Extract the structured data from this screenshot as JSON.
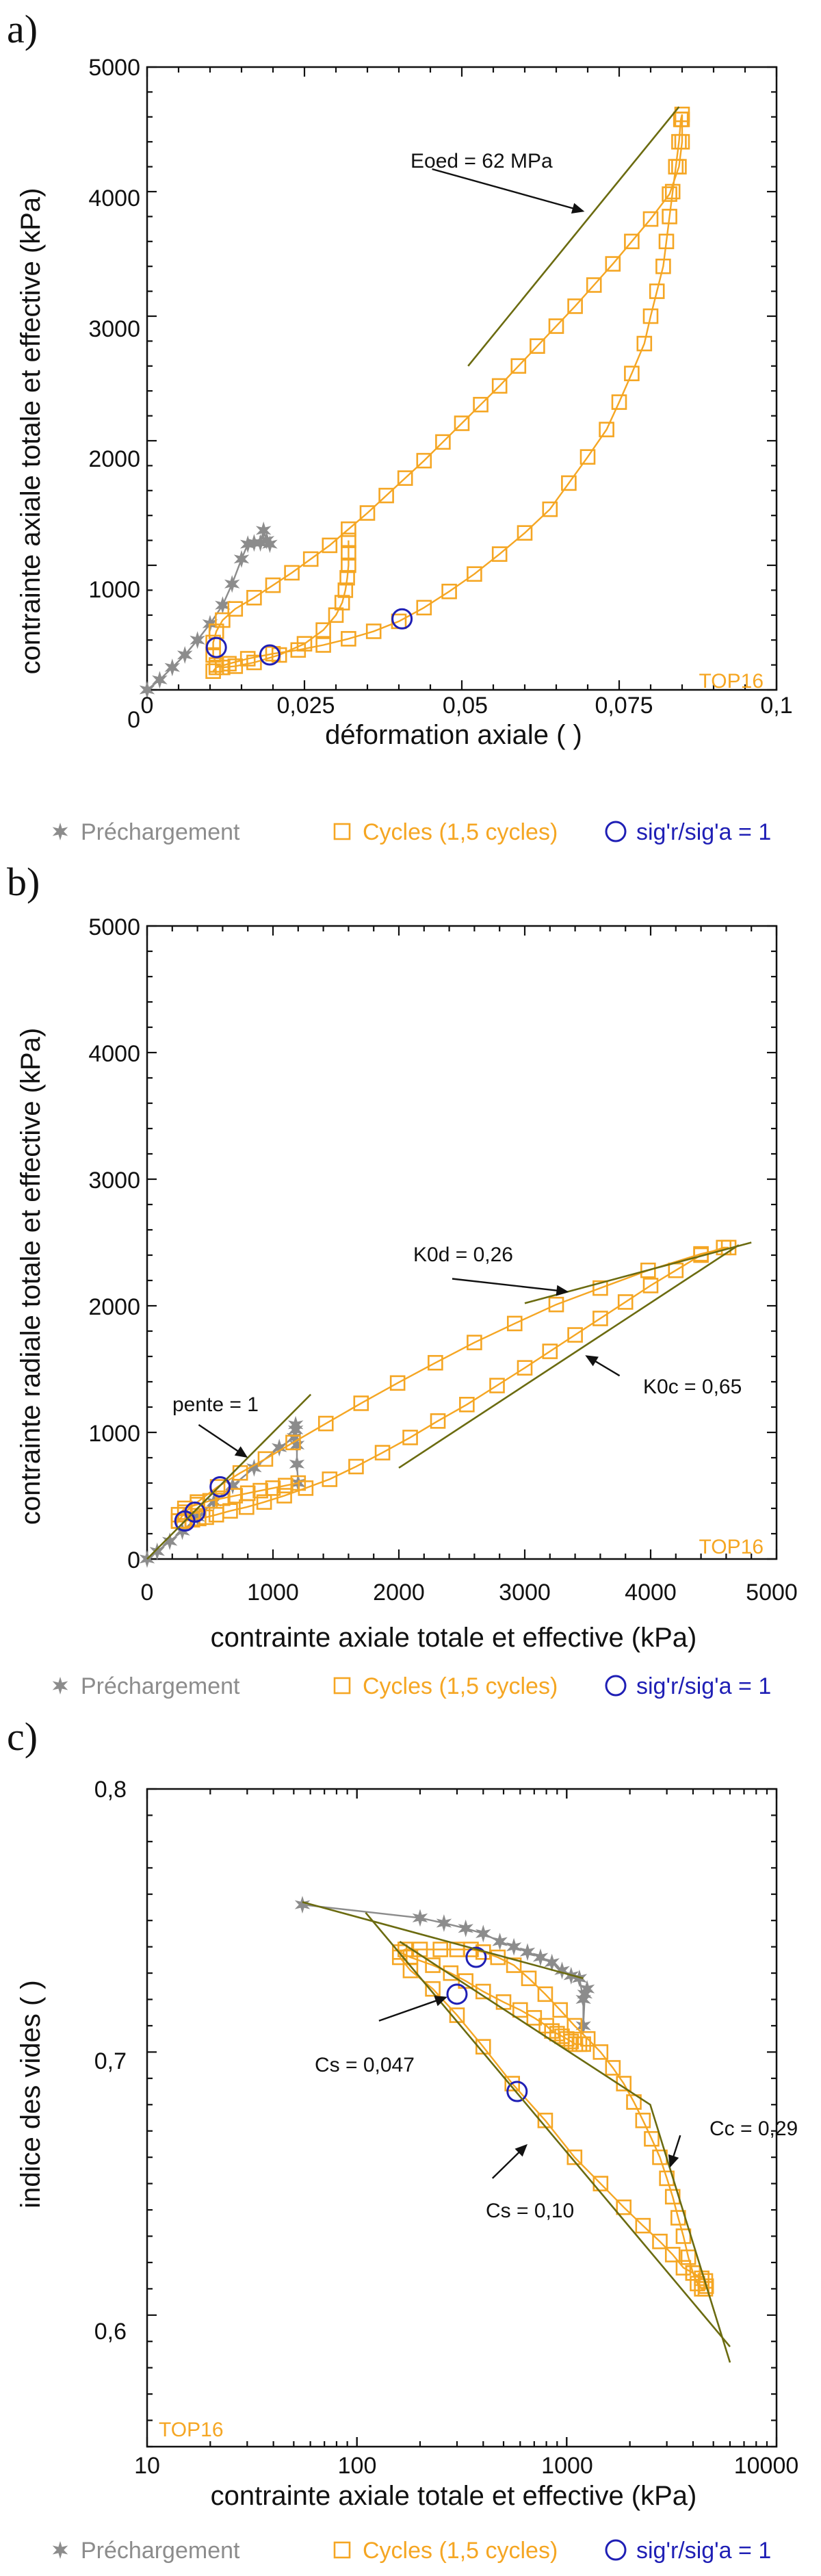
{
  "colors": {
    "prechargement": "#8c8c8c",
    "cycles": "#f5a623",
    "ratio": "#1f1fb5",
    "fit": "#6b6b10",
    "axis": "#111111"
  },
  "legend": {
    "prechargement": "Préchargement",
    "cycles": "Cycles  (1,5 cycles)",
    "ratio": "sig'r/sig'a = 1"
  },
  "chart_data": [
    {
      "panel_label": "a)",
      "type": "scatter",
      "tag": "TOP16",
      "xlabel": "déformation axiale ( )",
      "ylabel": "contrainte axiale totale et effective (kPa)",
      "xlim": [
        0,
        0.1
      ],
      "ylim": [
        0,
        5000
      ],
      "xticks": [
        "0",
        "0,025",
        "0,05",
        "0,075",
        "0,1"
      ],
      "yticks": [
        "0",
        "1000",
        "2000",
        "3000",
        "4000",
        "5000"
      ],
      "series": [
        {
          "name": "Préchargement",
          "marker": "star",
          "x": [
            0.0,
            0.002,
            0.004,
            0.006,
            0.008,
            0.01,
            0.012,
            0.0135,
            0.015,
            0.016,
            0.017,
            0.018,
            0.0185,
            0.019,
            0.0195
          ],
          "y": [
            0,
            80,
            180,
            280,
            400,
            530,
            680,
            850,
            1050,
            1170,
            1180,
            1180,
            1280,
            1200,
            1170
          ]
        },
        {
          "name": "Cycles  (1,5 cycles)",
          "marker": "square",
          "x": [
            0.032,
            0.032,
            0.032,
            0.0318,
            0.0315,
            0.031,
            0.03,
            0.028,
            0.025,
            0.021,
            0.017,
            0.014,
            0.012,
            0.011,
            0.0105,
            0.0105,
            0.011,
            0.012,
            0.014,
            0.017,
            0.02,
            0.023,
            0.026,
            0.029,
            0.032,
            0.035,
            0.038,
            0.041,
            0.044,
            0.047,
            0.05,
            0.053,
            0.056,
            0.059,
            0.062,
            0.065,
            0.068,
            0.071,
            0.074,
            0.077,
            0.08,
            0.083,
            0.0845,
            0.085,
            0.085,
            0.085,
            0.0848,
            0.0845,
            0.084,
            0.0835,
            0.083,
            0.0825,
            0.082,
            0.081,
            0.08,
            0.079,
            0.077,
            0.075,
            0.073,
            0.07,
            0.067,
            0.064,
            0.06,
            0.056,
            0.052,
            0.048,
            0.044,
            0.04,
            0.036,
            0.032,
            0.028,
            0.024,
            0.02,
            0.016,
            0.013,
            0.011,
            0.0105
          ],
          "y": [
            1200,
            1100,
            1000,
            900,
            800,
            700,
            600,
            480,
            370,
            280,
            220,
            190,
            180,
            200,
            280,
            380,
            470,
            560,
            650,
            740,
            840,
            940,
            1050,
            1160,
            1290,
            1420,
            1560,
            1700,
            1840,
            1990,
            2140,
            2290,
            2440,
            2600,
            2760,
            2920,
            3080,
            3250,
            3420,
            3600,
            3780,
            3980,
            4200,
            4400,
            4580,
            4620,
            4580,
            4400,
            4200,
            4000,
            3800,
            3600,
            3400,
            3200,
            3000,
            2780,
            2540,
            2310,
            2090,
            1870,
            1660,
            1450,
            1260,
            1090,
            930,
            790,
            660,
            550,
            470,
            410,
            360,
            320,
            290,
            250,
            210,
            180,
            150
          ]
        },
        {
          "name": "sig'r/sig'a = 1",
          "marker": "circle",
          "x": [
            0.011,
            0.0195,
            0.0405
          ],
          "y": [
            340,
            280,
            570
          ]
        }
      ],
      "fit_lines": [
        {
          "x": [
            0.051,
            0.0845
          ],
          "y": [
            2600,
            4680
          ]
        }
      ],
      "annotations": [
        {
          "text": "Eoed = 62 MPa",
          "x": 0.039,
          "y": 4270,
          "arrow_to": [
            0.0695,
            3840
          ]
        }
      ]
    },
    {
      "panel_label": "b)",
      "type": "scatter",
      "tag": "TOP16",
      "xlabel": "contrainte axiale totale et effective (kPa)",
      "ylabel": "contrainte radiale totale et effective (kPa)",
      "xlim": [
        0,
        5000
      ],
      "ylim": [
        0,
        5000
      ],
      "xticks": [
        "0",
        "1000",
        "2000",
        "3000",
        "4000",
        "5000"
      ],
      "yticks": [
        "0",
        "1000",
        "2000",
        "3000",
        "4000",
        "5000"
      ],
      "series": [
        {
          "name": "Préchargement",
          "marker": "star",
          "x": [
            0,
            80,
            180,
            280,
            400,
            530,
            680,
            850,
            1050,
            1170,
            1180,
            1180,
            1190,
            1190,
            1200
          ],
          "y": [
            0,
            60,
            140,
            220,
            330,
            450,
            580,
            720,
            880,
            960,
            1020,
            1060,
            900,
            750,
            600
          ]
        },
        {
          "name": "Cycles  (1,5 cycles)",
          "marker": "square",
          "x": [
            1200,
            1100,
            1000,
            900,
            800,
            700,
            600,
            500,
            400,
            300,
            250,
            250,
            300,
            400,
            560,
            740,
            940,
            1160,
            1420,
            1700,
            1990,
            2290,
            2600,
            2920,
            3250,
            3600,
            3980,
            4400,
            4620,
            4580,
            4400,
            4200,
            4000,
            3800,
            3600,
            3400,
            3200,
            3000,
            2780,
            2540,
            2310,
            2090,
            1870,
            1660,
            1450,
            1260,
            1090,
            930,
            790,
            660,
            550,
            470,
            410,
            360,
            290,
            250
          ],
          "y": [
            600,
            580,
            560,
            540,
            520,
            500,
            480,
            460,
            430,
            400,
            350,
            300,
            370,
            450,
            570,
            680,
            790,
            920,
            1070,
            1230,
            1390,
            1550,
            1710,
            1860,
            2010,
            2140,
            2280,
            2410,
            2460,
            2460,
            2400,
            2280,
            2160,
            2030,
            1900,
            1770,
            1640,
            1510,
            1370,
            1220,
            1090,
            960,
            840,
            730,
            630,
            560,
            500,
            450,
            410,
            380,
            350,
            330,
            320,
            310,
            300,
            300
          ]
        },
        {
          "name": "sig'r/sig'a = 1",
          "marker": "circle",
          "x": [
            300,
            380,
            580
          ],
          "y": [
            300,
            370,
            570
          ]
        }
      ],
      "fit_lines": [
        {
          "x": [
            0,
            1300
          ],
          "y": [
            0,
            1300
          ]
        },
        {
          "x": [
            3000,
            4800
          ],
          "y": [
            2020,
            2500
          ]
        },
        {
          "x": [
            2000,
            4700
          ],
          "y": [
            720,
            2480
          ]
        }
      ],
      "annotations": [
        {
          "text": "pente = 1",
          "x": 200,
          "y": 1200,
          "arrow_to": [
            800,
            800
          ]
        },
        {
          "text": "K0d = 0,26",
          "x": 2100,
          "y": 2250,
          "arrow_to": [
            3350,
            2110
          ]
        },
        {
          "text": "K0c = 0,65",
          "x": 3900,
          "y": 1360,
          "arrow_to": [
            3480,
            1610
          ]
        }
      ]
    },
    {
      "panel_label": "c)",
      "type": "scatter",
      "tag": "TOP16",
      "xlabel": "contrainte axiale totale et effective (kPa)",
      "ylabel": "indice des vides ( )",
      "xscale": "log",
      "xlim": [
        10,
        10000
      ],
      "ylim": [
        0.55,
        0.8
      ],
      "xticks": [
        "10",
        "100",
        "1000",
        "10000"
      ],
      "yticks": [
        "0,6",
        "0,7",
        "0,8"
      ],
      "series": [
        {
          "name": "Préchargement",
          "marker": "star",
          "x": [
            55,
            200,
            260,
            330,
            400,
            480,
            560,
            650,
            750,
            850,
            950,
            1050,
            1150,
            1200,
            1200,
            1220,
            1250
          ],
          "y": [
            0.756,
            0.751,
            0.749,
            0.747,
            0.745,
            0.742,
            0.74,
            0.738,
            0.736,
            0.734,
            0.731,
            0.729,
            0.728,
            0.72,
            0.71,
            0.722,
            0.724
          ]
        },
        {
          "name": "Cycles  (1,5 cycles)",
          "marker": "square",
          "x": [
            1200,
            1150,
            1100,
            1050,
            1000,
            950,
            900,
            850,
            800,
            700,
            600,
            500,
            400,
            330,
            280,
            230,
            180,
            160,
            170,
            200,
            250,
            300,
            350,
            400,
            470,
            560,
            660,
            790,
            930,
            1090,
            1260,
            1450,
            1660,
            1870,
            2090,
            2310,
            2540,
            2780,
            3000,
            3200,
            3400,
            3600,
            3800,
            4000,
            4200,
            4400,
            4580,
            4620,
            4580,
            4400,
            4000,
            3600,
            3200,
            2780,
            2310,
            1870,
            1450,
            1090,
            790,
            550,
            400,
            300,
            230,
            180,
            160
          ],
          "y": [
            0.703,
            0.703,
            0.703,
            0.704,
            0.705,
            0.706,
            0.707,
            0.708,
            0.71,
            0.713,
            0.716,
            0.719,
            0.723,
            0.727,
            0.73,
            0.733,
            0.736,
            0.738,
            0.739,
            0.739,
            0.739,
            0.739,
            0.739,
            0.738,
            0.736,
            0.733,
            0.728,
            0.722,
            0.716,
            0.71,
            0.705,
            0.7,
            0.694,
            0.688,
            0.681,
            0.674,
            0.667,
            0.66,
            0.652,
            0.645,
            0.637,
            0.63,
            0.622,
            0.616,
            0.612,
            0.61,
            0.61,
            0.611,
            0.613,
            0.614,
            0.616,
            0.618,
            0.623,
            0.628,
            0.634,
            0.641,
            0.65,
            0.66,
            0.674,
            0.688,
            0.702,
            0.714,
            0.724,
            0.731,
            0.736
          ]
        },
        {
          "name": "sig'r/sig'a = 1",
          "marker": "circle",
          "x": [
            370,
            300,
            580
          ],
          "y": [
            0.736,
            0.722,
            0.685
          ]
        }
      ],
      "fit_lines": [
        {
          "x": [
            55,
            1200
          ],
          "y": [
            0.757,
            0.728
          ]
        },
        {
          "x": [
            160,
            2500,
            6000
          ],
          "y": [
            0.742,
            0.68,
            0.582
          ]
        },
        {
          "x": [
            110,
            6000
          ],
          "y": [
            0.753,
            0.588
          ]
        }
      ],
      "annotations": [
        {
          "text": "Cs = 0,047",
          "x": 85,
          "y": 0.707,
          "arrow_to": [
            270,
            0.721
          ]
        },
        {
          "text": "Cs = 0,10",
          "x": 360,
          "y": 0.645,
          "arrow_to": [
            650,
            0.665
          ]
        },
        {
          "text": "Cc = 0,29",
          "x": 3700,
          "y": 0.675,
          "arrow_to": [
            3100,
            0.656
          ]
        }
      ]
    }
  ]
}
